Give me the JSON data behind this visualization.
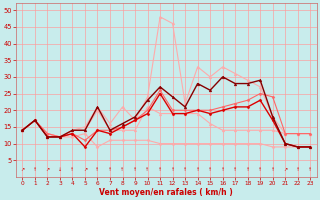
{
  "xlabel": "Vent moyen/en rafales ( km/h )",
  "xlim": [
    -0.5,
    23.5
  ],
  "ylim": [
    0,
    52
  ],
  "yticks": [
    5,
    10,
    15,
    20,
    25,
    30,
    35,
    40,
    45,
    50
  ],
  "xticks": [
    0,
    1,
    2,
    3,
    4,
    5,
    6,
    7,
    8,
    9,
    10,
    11,
    12,
    13,
    14,
    15,
    16,
    17,
    18,
    19,
    20,
    21,
    22,
    23
  ],
  "bg_color": "#c8ecec",
  "grid_color": "#ff9999",
  "lines": [
    {
      "x": [
        0,
        1,
        2,
        3,
        4,
        5,
        6,
        7,
        8,
        9,
        10,
        11,
        12,
        13,
        14,
        15,
        16,
        17,
        18,
        19,
        20,
        21,
        22,
        23
      ],
      "y": [
        14,
        17,
        13,
        12,
        12,
        13,
        9,
        11,
        11,
        11,
        11,
        10,
        10,
        10,
        10,
        10,
        10,
        10,
        10,
        10,
        9,
        9,
        9,
        9
      ],
      "color": "#ffaaaa",
      "lw": 0.8,
      "marker": "D",
      "ms": 1.5,
      "zorder": 2
    },
    {
      "x": [
        0,
        1,
        2,
        3,
        4,
        5,
        6,
        7,
        8,
        9,
        10,
        11,
        12,
        13,
        14,
        15,
        16,
        17,
        18,
        19,
        20,
        21,
        22,
        23
      ],
      "y": [
        14,
        17,
        13,
        12,
        14,
        14,
        20,
        14,
        14,
        14,
        21,
        19,
        19,
        19,
        19,
        16,
        14,
        14,
        14,
        14,
        14,
        13,
        13,
        13
      ],
      "color": "#ffaaaa",
      "lw": 0.8,
      "marker": "^",
      "ms": 2.0,
      "zorder": 2
    },
    {
      "x": [
        0,
        1,
        2,
        3,
        4,
        5,
        6,
        7,
        8,
        9,
        10,
        11,
        12,
        13,
        14,
        15,
        16,
        17,
        18,
        19,
        20,
        21,
        22,
        23
      ],
      "y": [
        14,
        17,
        13,
        12,
        13,
        11,
        14,
        14,
        15,
        17,
        20,
        26,
        20,
        20,
        20,
        20,
        21,
        22,
        23,
        25,
        24,
        13,
        13,
        13
      ],
      "color": "#ff6666",
      "lw": 0.8,
      "marker": "D",
      "ms": 1.5,
      "zorder": 3
    },
    {
      "x": [
        0,
        1,
        2,
        3,
        4,
        5,
        6,
        7,
        8,
        9,
        10,
        11,
        12,
        13,
        14,
        15,
        16,
        17,
        18,
        19,
        20,
        21,
        22,
        23
      ],
      "y": [
        14,
        17,
        13,
        12,
        14,
        15,
        21,
        16,
        21,
        17,
        24,
        48,
        46,
        22,
        33,
        30,
        33,
        31,
        29,
        27,
        18,
        13,
        13,
        13
      ],
      "color": "#ffaaaa",
      "lw": 0.8,
      "marker": "^",
      "ms": 2.0,
      "zorder": 2
    },
    {
      "x": [
        0,
        1,
        2,
        3,
        4,
        5,
        6,
        7,
        8,
        9,
        10,
        11,
        12,
        13,
        14,
        15,
        16,
        17,
        18,
        19,
        20,
        21,
        22,
        23
      ],
      "y": [
        14,
        17,
        12,
        12,
        13,
        9,
        14,
        13,
        15,
        17,
        19,
        25,
        19,
        19,
        20,
        19,
        20,
        21,
        21,
        23,
        17,
        10,
        9,
        9
      ],
      "color": "#dd0000",
      "lw": 1.0,
      "marker": "D",
      "ms": 1.5,
      "zorder": 4
    },
    {
      "x": [
        0,
        1,
        2,
        3,
        4,
        5,
        6,
        7,
        8,
        9,
        10,
        11,
        12,
        13,
        14,
        15,
        16,
        17,
        18,
        19,
        20,
        21,
        22,
        23
      ],
      "y": [
        14,
        17,
        12,
        12,
        14,
        14,
        21,
        14,
        16,
        18,
        23,
        27,
        24,
        21,
        28,
        26,
        30,
        28,
        28,
        29,
        18,
        10,
        9,
        9
      ],
      "color": "#880000",
      "lw": 1.0,
      "marker": "^",
      "ms": 2.0,
      "zorder": 4
    }
  ],
  "wind_x": [
    0,
    1,
    2,
    3,
    4,
    5,
    6,
    7,
    8,
    9,
    10,
    11,
    12,
    13,
    14,
    15,
    16,
    17,
    18,
    19,
    20,
    21,
    22,
    23
  ],
  "wind_syms": [
    "↗",
    "↑",
    "↗",
    "↓",
    "↑",
    "↗",
    "↑",
    "↑",
    "↑",
    "↑",
    "↑",
    "↑",
    "↑",
    "↑",
    "↑",
    "↑",
    "↑",
    "↑",
    "↑",
    "↑",
    "↑",
    "↗",
    "↑",
    "↑"
  ],
  "wind_color": "#cc0000",
  "wind_y": 2.2
}
